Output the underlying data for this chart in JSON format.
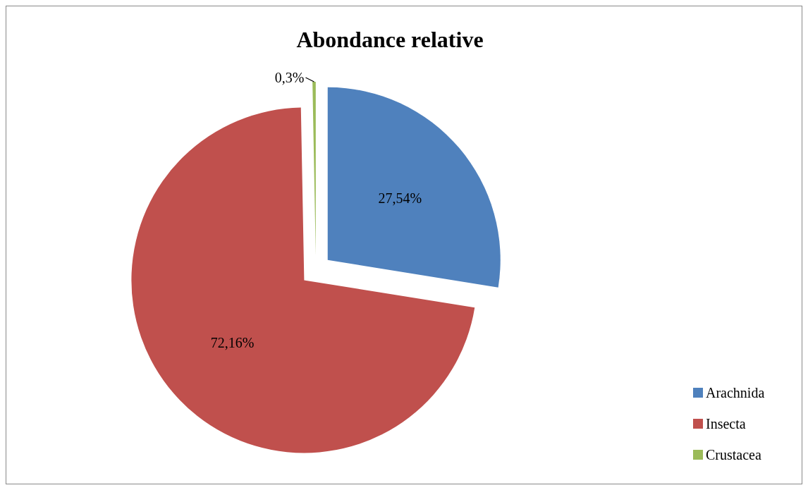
{
  "chart_data": {
    "type": "pie",
    "title": "Abondance relative",
    "categories": [
      "Arachnida",
      "Insecta",
      "Crustacea"
    ],
    "values": [
      27.54,
      72.16,
      0.3
    ],
    "colors": [
      "#4f81bd",
      "#c0504d",
      "#9bbb59"
    ],
    "value_labels": [
      "27,54%",
      "72,16%",
      "0,3%"
    ],
    "legend": "right"
  }
}
